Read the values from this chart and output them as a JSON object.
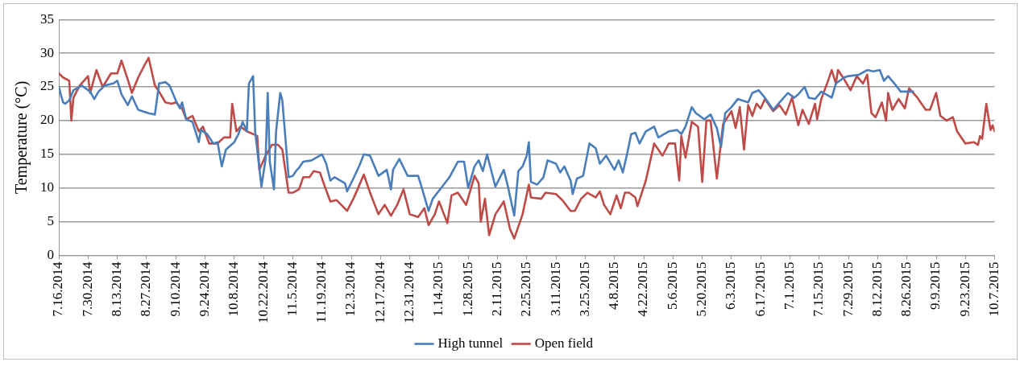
{
  "chart_data": {
    "type": "line",
    "ylabel": "Temperature (°C)",
    "xlim": [
      "2014-07-16",
      "2015-10-07"
    ],
    "ylim": [
      0,
      35
    ],
    "yticks": [
      0,
      5,
      10,
      15,
      20,
      25,
      30,
      35
    ],
    "xticks": [
      {
        "value": "2014-07-16",
        "label": "7.16.2014"
      },
      {
        "value": "2014-07-30",
        "label": "7.30.2014"
      },
      {
        "value": "2014-08-13",
        "label": "8.13.2014"
      },
      {
        "value": "2014-08-27",
        "label": "8.27.2014"
      },
      {
        "value": "2014-09-10",
        "label": "9.10.2014"
      },
      {
        "value": "2014-09-24",
        "label": "9.24.2014"
      },
      {
        "value": "2014-10-08",
        "label": "10.8.2014"
      },
      {
        "value": "2014-10-22",
        "label": "10.22.2014"
      },
      {
        "value": "2014-11-05",
        "label": "11.5.2014"
      },
      {
        "value": "2014-11-19",
        "label": "11.19.2014"
      },
      {
        "value": "2014-12-03",
        "label": "12.3.2014"
      },
      {
        "value": "2014-12-17",
        "label": "12.17.2014"
      },
      {
        "value": "2014-12-31",
        "label": "12.31.2014"
      },
      {
        "value": "2015-01-14",
        "label": "1.14.2015"
      },
      {
        "value": "2015-01-28",
        "label": "1.28.2015"
      },
      {
        "value": "2015-02-11",
        "label": "2.11.2015"
      },
      {
        "value": "2015-02-25",
        "label": "2.25.2015"
      },
      {
        "value": "2015-03-11",
        "label": "3.11.2015"
      },
      {
        "value": "2015-03-25",
        "label": "3.25.2015"
      },
      {
        "value": "2015-04-08",
        "label": "4.8.2015"
      },
      {
        "value": "2015-04-22",
        "label": "4.22.2015"
      },
      {
        "value": "2015-05-06",
        "label": "5.6.2015"
      },
      {
        "value": "2015-05-20",
        "label": "5.20.2015"
      },
      {
        "value": "2015-06-03",
        "label": "6.3.2015"
      },
      {
        "value": "2015-06-17",
        "label": "6.17.2015"
      },
      {
        "value": "2015-07-01",
        "label": "7.1.2015"
      },
      {
        "value": "2015-07-15",
        "label": "7.15.2015"
      },
      {
        "value": "2015-07-29",
        "label": "7.29.2015"
      },
      {
        "value": "2015-08-12",
        "label": "8.12.2015"
      },
      {
        "value": "2015-08-26",
        "label": "8.26.2015"
      },
      {
        "value": "2015-09-09",
        "label": "9.9.2015"
      },
      {
        "value": "2015-09-23",
        "label": "9.23.2015"
      },
      {
        "value": "2015-10-07",
        "label": "10.7.2015"
      }
    ],
    "grid": "y",
    "legend": "bottom",
    "marker": "none",
    "line_style": "solid",
    "series": [
      {
        "name": "High tunnel",
        "color": "#4a7ebb",
        "x": [
          "2014-07-16",
          "2014-07-18",
          "2014-07-19",
          "2014-07-21",
          "2014-07-23",
          "2014-07-27",
          "2014-07-31",
          "2014-08-02",
          "2014-08-04",
          "2014-08-07",
          "2014-08-11",
          "2014-08-13",
          "2014-08-15",
          "2014-08-18",
          "2014-08-20",
          "2014-08-23",
          "2014-08-28",
          "2014-08-31",
          "2014-09-02",
          "2014-09-05",
          "2014-09-07",
          "2014-09-10",
          "2014-09-12",
          "2014-09-13",
          "2014-09-15",
          "2014-09-18",
          "2014-09-21",
          "2014-09-22",
          "2014-09-25",
          "2014-09-28",
          "2014-09-30",
          "2014-10-02",
          "2014-10-04",
          "2014-10-08",
          "2014-10-10",
          "2014-10-12",
          "2014-10-14",
          "2014-10-15",
          "2014-10-17",
          "2014-10-18",
          "2014-10-21",
          "2014-10-23",
          "2014-10-24",
          "2014-10-25",
          "2014-10-27",
          "2014-10-28",
          "2014-10-30",
          "2014-10-31",
          "2014-11-03",
          "2014-11-05",
          "2014-11-07",
          "2014-11-08",
          "2014-11-10",
          "2014-11-14",
          "2014-11-19",
          "2014-11-21",
          "2014-11-23",
          "2014-11-25",
          "2014-11-30",
          "2014-12-01",
          "2014-12-04",
          "2014-12-07",
          "2014-12-09",
          "2014-12-12",
          "2014-12-16",
          "2014-12-20",
          "2014-12-22",
          "2014-12-23",
          "2014-12-26",
          "2014-12-30",
          "2015-01-04",
          "2015-01-06",
          "2015-01-09",
          "2015-01-11",
          "2015-01-15",
          "2015-01-19",
          "2015-01-23",
          "2015-01-26",
          "2015-01-28",
          "2015-01-31",
          "2015-02-02",
          "2015-02-04",
          "2015-02-06",
          "2015-02-10",
          "2015-02-14",
          "2015-02-16",
          "2015-02-19",
          "2015-02-21",
          "2015-02-23",
          "2015-02-25",
          "2015-02-26",
          "2015-02-27",
          "2015-03-02",
          "2015-03-05",
          "2015-03-07",
          "2015-03-11",
          "2015-03-13",
          "2015-03-15",
          "2015-03-18",
          "2015-03-19",
          "2015-03-21",
          "2015-03-24",
          "2015-03-27",
          "2015-03-30",
          "2015-04-01",
          "2015-04-04",
          "2015-04-08",
          "2015-04-10",
          "2015-04-12",
          "2015-04-14",
          "2015-04-16",
          "2015-04-18",
          "2015-04-20",
          "2015-04-23",
          "2015-04-27",
          "2015-04-29",
          "2015-05-04",
          "2015-05-08",
          "2015-05-10",
          "2015-05-12",
          "2015-05-15",
          "2015-05-17",
          "2015-05-21",
          "2015-05-24",
          "2015-05-27",
          "2015-05-29",
          "2015-05-31",
          "2015-06-03",
          "2015-06-06",
          "2015-06-08",
          "2015-06-11",
          "2015-06-13",
          "2015-06-16",
          "2015-06-19",
          "2015-06-23",
          "2015-06-26",
          "2015-06-30",
          "2015-07-03",
          "2015-07-05",
          "2015-07-08",
          "2015-07-10",
          "2015-07-13",
          "2015-07-16",
          "2015-07-21",
          "2015-07-23",
          "2015-07-27",
          "2015-07-29",
          "2015-08-03",
          "2015-08-07",
          "2015-08-10",
          "2015-08-13",
          "2015-08-15",
          "2015-08-17",
          "2015-08-20",
          "2015-08-23",
          "2015-08-29"
        ],
        "values": [
          25.0,
          22.7,
          22.5,
          23.0,
          24.5,
          25.2,
          24.3,
          23.2,
          24.3,
          25.2,
          25.5,
          25.9,
          23.9,
          22.3,
          23.6,
          21.6,
          21.1,
          20.9,
          25.5,
          25.7,
          25.2,
          23.0,
          21.8,
          22.7,
          20.2,
          19.8,
          16.8,
          18.6,
          18.0,
          16.6,
          16.8,
          13.2,
          15.7,
          16.8,
          18.0,
          19.8,
          18.4,
          25.5,
          26.6,
          18.4,
          10.2,
          14.3,
          24.1,
          13.9,
          9.8,
          18.4,
          24.1,
          23.0,
          11.6,
          11.8,
          12.7,
          13.0,
          13.9,
          14.1,
          15.0,
          13.6,
          11.1,
          11.6,
          10.7,
          9.5,
          11.4,
          13.4,
          15.0,
          14.8,
          11.8,
          12.7,
          9.8,
          12.7,
          14.3,
          11.8,
          11.8,
          9.8,
          6.6,
          8.4,
          10.0,
          11.6,
          13.9,
          13.9,
          10.0,
          13.2,
          14.1,
          12.5,
          15.0,
          10.2,
          12.7,
          10.2,
          5.9,
          12.5,
          13.2,
          14.8,
          16.8,
          10.9,
          10.5,
          11.6,
          14.1,
          13.6,
          12.3,
          13.2,
          11.1,
          9.1,
          11.4,
          11.8,
          16.6,
          15.9,
          13.6,
          14.8,
          12.7,
          14.1,
          12.3,
          15.0,
          18.0,
          18.2,
          16.6,
          18.4,
          19.1,
          17.5,
          18.4,
          18.6,
          18.0,
          19.1,
          22.0,
          21.1,
          20.2,
          20.9,
          18.9,
          16.1,
          21.1,
          22.0,
          23.2,
          23.0,
          22.7,
          24.1,
          24.5,
          23.4,
          21.6,
          22.7,
          24.1,
          23.4,
          23.9,
          25.0,
          23.4,
          23.2,
          24.3,
          23.4,
          25.5,
          26.4,
          26.6,
          26.8,
          27.5,
          27.3,
          27.5,
          25.9,
          26.6,
          25.5,
          24.3,
          24.3
        ]
      },
      {
        "name": "Open field",
        "color": "#be4b48",
        "x": [
          "2014-07-16",
          "2014-07-18",
          "2014-07-21",
          "2014-07-22",
          "2014-07-23",
          "2014-07-26",
          "2014-07-30",
          "2014-07-31",
          "2014-08-03",
          "2014-08-06",
          "2014-08-10",
          "2014-08-13",
          "2014-08-15",
          "2014-08-18",
          "2014-08-20",
          "2014-08-23",
          "2014-08-26",
          "2014-08-28",
          "2014-08-31",
          "2014-09-02",
          "2014-09-05",
          "2014-09-08",
          "2014-09-10",
          "2014-09-13",
          "2014-09-15",
          "2014-09-18",
          "2014-09-21",
          "2014-09-23",
          "2014-09-26",
          "2014-09-30",
          "2014-10-03",
          "2014-10-06",
          "2014-10-07",
          "2014-10-09",
          "2014-10-11",
          "2014-10-14",
          "2014-10-17",
          "2014-10-19",
          "2014-10-20",
          "2014-10-23",
          "2014-10-26",
          "2014-10-29",
          "2014-10-31",
          "2014-11-03",
          "2014-11-05",
          "2014-11-08",
          "2014-11-10",
          "2014-11-13",
          "2014-11-15",
          "2014-11-18",
          "2014-11-20",
          "2014-11-23",
          "2014-11-26",
          "2014-12-01",
          "2014-12-04",
          "2014-12-06",
          "2014-12-09",
          "2014-12-12",
          "2014-12-16",
          "2014-12-19",
          "2014-12-22",
          "2014-12-25",
          "2014-12-28",
          "2014-12-31",
          "2015-01-04",
          "2015-01-07",
          "2015-01-09",
          "2015-01-12",
          "2015-01-14",
          "2015-01-18",
          "2015-01-20",
          "2015-01-23",
          "2015-01-27",
          "2015-01-31",
          "2015-02-02",
          "2015-02-03",
          "2015-02-05",
          "2015-02-07",
          "2015-02-10",
          "2015-02-14",
          "2015-02-17",
          "2015-02-19",
          "2015-02-23",
          "2015-02-26",
          "2015-02-27",
          "2015-03-04",
          "2015-03-06",
          "2015-03-11",
          "2015-03-14",
          "2015-03-18",
          "2015-03-20",
          "2015-03-23",
          "2015-03-26",
          "2015-03-30",
          "2015-04-01",
          "2015-04-03",
          "2015-04-06",
          "2015-04-09",
          "2015-04-11",
          "2015-04-13",
          "2015-04-15",
          "2015-04-18",
          "2015-04-19",
          "2015-04-23",
          "2015-04-27",
          "2015-05-01",
          "2015-05-04",
          "2015-05-07",
          "2015-05-09",
          "2015-05-10",
          "2015-05-12",
          "2015-05-15",
          "2015-05-18",
          "2015-05-20",
          "2015-05-22",
          "2015-05-24",
          "2015-05-27",
          "2015-05-30",
          "2015-06-03",
          "2015-06-05",
          "2015-06-07",
          "2015-06-09",
          "2015-06-11",
          "2015-06-13",
          "2015-06-15",
          "2015-06-17",
          "2015-06-19",
          "2015-06-23",
          "2015-06-26",
          "2015-06-29",
          "2015-07-02",
          "2015-07-05",
          "2015-07-07",
          "2015-07-10",
          "2015-07-13",
          "2015-07-14",
          "2015-07-16",
          "2015-07-19",
          "2015-07-21",
          "2015-07-23",
          "2015-07-24",
          "2015-07-27",
          "2015-07-30",
          "2015-08-02",
          "2015-08-05",
          "2015-08-07",
          "2015-08-09",
          "2015-08-11",
          "2015-08-14",
          "2015-08-16",
          "2015-08-17",
          "2015-08-19",
          "2015-08-22",
          "2015-08-25",
          "2015-08-27",
          "2015-08-31",
          "2015-09-04",
          "2015-09-06",
          "2015-09-09",
          "2015-09-11",
          "2015-09-14",
          "2015-09-17",
          "2015-09-19",
          "2015-09-23",
          "2015-09-27",
          "2015-09-29",
          "2015-09-30",
          "2015-10-01",
          "2015-10-03",
          "2015-10-05",
          "2015-10-06",
          "2015-10-07"
        ],
        "values": [
          27.0,
          26.4,
          25.9,
          20.0,
          23.4,
          25.2,
          26.6,
          24.1,
          27.5,
          25.0,
          27.0,
          27.0,
          28.9,
          26.1,
          24.1,
          26.4,
          28.2,
          29.3,
          25.2,
          24.3,
          22.7,
          22.5,
          22.7,
          21.8,
          20.2,
          20.7,
          18.4,
          19.1,
          16.6,
          16.6,
          17.5,
          17.5,
          22.5,
          18.4,
          19.1,
          18.4,
          18.0,
          17.7,
          12.7,
          14.8,
          16.4,
          16.4,
          15.7,
          9.3,
          9.3,
          9.8,
          11.6,
          11.6,
          12.5,
          12.3,
          10.5,
          8.0,
          8.2,
          6.6,
          8.4,
          9.8,
          12.0,
          9.3,
          6.1,
          7.5,
          5.9,
          7.5,
          9.8,
          6.1,
          5.7,
          7.0,
          4.5,
          6.1,
          8.0,
          4.8,
          8.9,
          9.3,
          7.5,
          11.8,
          10.7,
          5.0,
          8.4,
          3.0,
          6.1,
          8.0,
          3.9,
          2.5,
          6.1,
          10.5,
          8.6,
          8.4,
          9.3,
          9.1,
          8.2,
          6.6,
          6.6,
          8.4,
          9.3,
          8.6,
          9.5,
          7.5,
          6.1,
          8.9,
          7.0,
          9.3,
          9.3,
          8.6,
          7.3,
          11.1,
          16.6,
          14.8,
          16.6,
          16.6,
          11.1,
          17.7,
          14.5,
          19.8,
          19.1,
          10.9,
          20.0,
          20.0,
          11.4,
          19.5,
          21.4,
          18.9,
          22.0,
          15.7,
          22.3,
          20.7,
          22.5,
          21.8,
          23.2,
          21.4,
          22.3,
          20.9,
          23.4,
          19.3,
          21.6,
          19.5,
          22.5,
          20.2,
          23.2,
          25.7,
          27.5,
          25.5,
          27.5,
          26.1,
          24.5,
          26.6,
          25.5,
          26.8,
          21.1,
          20.5,
          22.7,
          20.0,
          24.1,
          21.6,
          23.2,
          21.8,
          24.8,
          23.4,
          21.6,
          21.6,
          24.1,
          20.7,
          20.0,
          20.5,
          18.4,
          16.6,
          16.8,
          16.4,
          17.7,
          17.3,
          22.5,
          18.6,
          19.3,
          18.4
        ]
      }
    ]
  }
}
